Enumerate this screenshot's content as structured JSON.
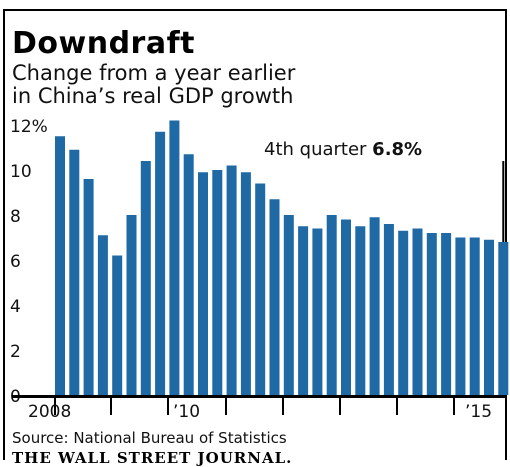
{
  "title": "Downdraft",
  "subtitle_lines": [
    "Change from a year earlier",
    "in China’s real GDP growth"
  ],
  "source": "Source: National Bureau of Statistics",
  "publisher": "THE WALL STREET JOURNAL.",
  "colors": {
    "bar": "#1f6aa5",
    "axis": "#000000",
    "text": "#111111"
  },
  "chart_data": {
    "type": "bar",
    "title": "Downdraft",
    "subtitle": "Change from a year earlier in China’s real GDP growth",
    "xlabel": "",
    "ylabel": "",
    "ylim": [
      0,
      12
    ],
    "y_ticks": [
      0,
      2,
      4,
      6,
      8,
      10,
      12
    ],
    "y_tick_labels": [
      "0",
      "2",
      "4",
      "6",
      "8",
      "10",
      "12%"
    ],
    "x_tick_labels": [
      "2008",
      "’10",
      "’15"
    ],
    "grid": false,
    "categories": [
      "2008 Q1",
      "2008 Q2",
      "2008 Q3",
      "2008 Q4",
      "2009 Q1",
      "2009 Q2",
      "2009 Q3",
      "2009 Q4",
      "2010 Q1",
      "2010 Q2",
      "2010 Q3",
      "2010 Q4",
      "2011 Q1",
      "2011 Q2",
      "2011 Q3",
      "2011 Q4",
      "2012 Q1",
      "2012 Q2",
      "2012 Q3",
      "2012 Q4",
      "2013 Q1",
      "2013 Q2",
      "2013 Q3",
      "2013 Q4",
      "2014 Q1",
      "2014 Q2",
      "2014 Q3",
      "2014 Q4",
      "2015 Q1",
      "2015 Q2",
      "2015 Q3",
      "2015 Q4"
    ],
    "values": [
      11.5,
      10.9,
      9.6,
      7.1,
      6.2,
      8.0,
      10.4,
      11.7,
      12.2,
      10.7,
      9.9,
      10.0,
      10.2,
      9.9,
      9.4,
      8.7,
      8.0,
      7.5,
      7.4,
      8.0,
      7.8,
      7.5,
      7.9,
      7.6,
      7.3,
      7.4,
      7.2,
      7.2,
      7.0,
      7.0,
      6.9,
      6.8
    ],
    "annotation": {
      "prefix": "4th quarter ",
      "value_label": "6.8%",
      "target_index": 31
    }
  }
}
